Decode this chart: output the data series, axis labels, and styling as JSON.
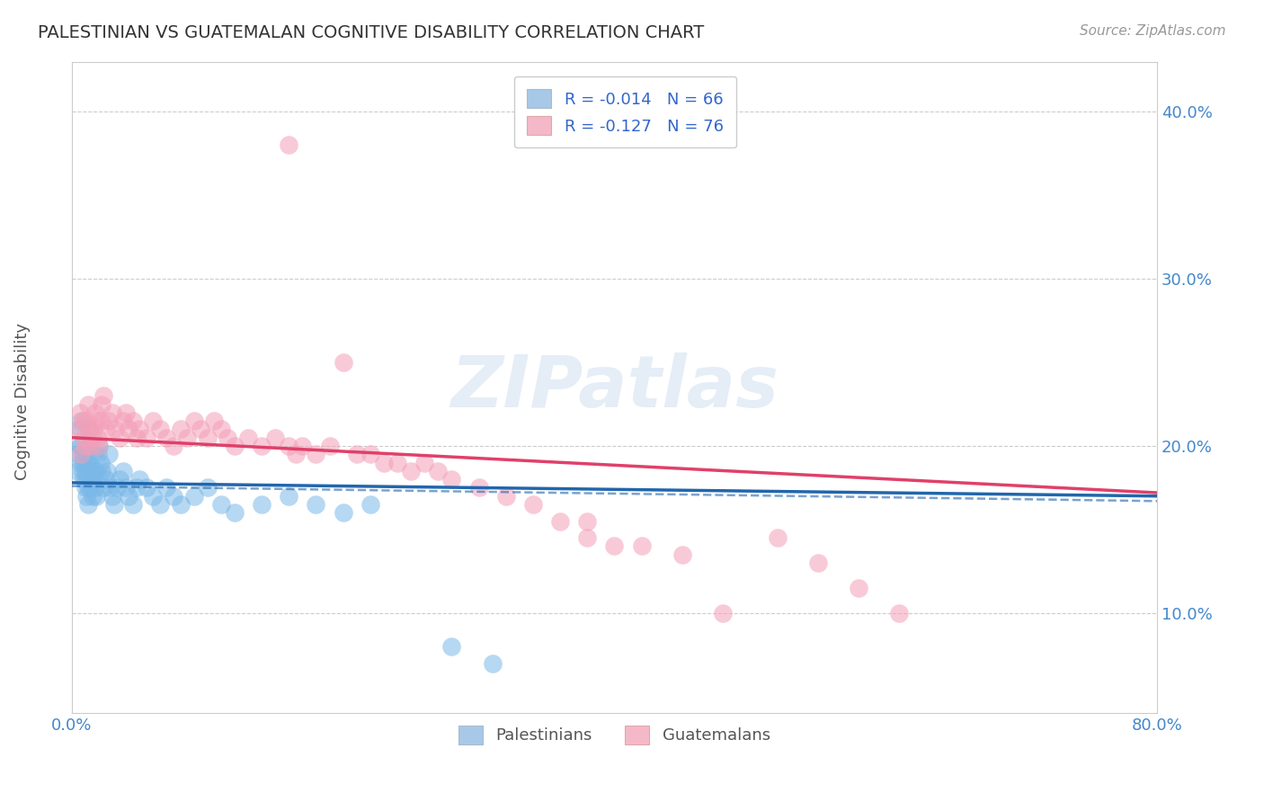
{
  "title": "PALESTINIAN VS GUATEMALAN COGNITIVE DISABILITY CORRELATION CHART",
  "source": "Source: ZipAtlas.com",
  "ylabel": "Cognitive Disability",
  "watermark": "ZIPatlas",
  "xlim": [
    0.0,
    0.8
  ],
  "ylim": [
    0.04,
    0.43
  ],
  "yticks": [
    0.1,
    0.2,
    0.3,
    0.4
  ],
  "xticks": [
    0.0,
    0.1,
    0.2,
    0.3,
    0.4,
    0.5,
    0.6,
    0.7,
    0.8
  ],
  "pal_color": "#7ab8e8",
  "pal_line_color": "#2166ac",
  "guat_color": "#f4a0b8",
  "guat_line_color": "#e0406a",
  "legend_patch_pal": "#a8c8e8",
  "legend_patch_guat": "#f4b8c8",
  "pal_line_start_y": 0.178,
  "pal_line_end_y": 0.17,
  "guat_line_start_y": 0.205,
  "guat_line_end_y": 0.172,
  "palestinians_x": [
    0.004,
    0.005,
    0.006,
    0.006,
    0.007,
    0.007,
    0.007,
    0.008,
    0.008,
    0.009,
    0.009,
    0.01,
    0.01,
    0.01,
    0.011,
    0.011,
    0.012,
    0.012,
    0.012,
    0.013,
    0.013,
    0.014,
    0.014,
    0.015,
    0.015,
    0.016,
    0.016,
    0.017,
    0.018,
    0.018,
    0.019,
    0.02,
    0.021,
    0.022,
    0.023,
    0.025,
    0.026,
    0.027,
    0.028,
    0.03,
    0.031,
    0.033,
    0.035,
    0.038,
    0.04,
    0.042,
    0.045,
    0.048,
    0.05,
    0.055,
    0.06,
    0.065,
    0.07,
    0.075,
    0.08,
    0.09,
    0.1,
    0.11,
    0.12,
    0.14,
    0.16,
    0.18,
    0.2,
    0.22,
    0.28,
    0.31
  ],
  "palestinians_y": [
    0.185,
    0.195,
    0.2,
    0.21,
    0.215,
    0.2,
    0.19,
    0.185,
    0.195,
    0.19,
    0.18,
    0.175,
    0.185,
    0.195,
    0.18,
    0.17,
    0.165,
    0.175,
    0.19,
    0.2,
    0.21,
    0.185,
    0.175,
    0.17,
    0.18,
    0.185,
    0.195,
    0.175,
    0.17,
    0.185,
    0.195,
    0.2,
    0.19,
    0.185,
    0.175,
    0.18,
    0.185,
    0.195,
    0.175,
    0.17,
    0.165,
    0.175,
    0.18,
    0.185,
    0.175,
    0.17,
    0.165,
    0.175,
    0.18,
    0.175,
    0.17,
    0.165,
    0.175,
    0.17,
    0.165,
    0.17,
    0.175,
    0.165,
    0.16,
    0.165,
    0.17,
    0.165,
    0.16,
    0.165,
    0.08,
    0.07
  ],
  "guatemalans_x": [
    0.005,
    0.006,
    0.007,
    0.008,
    0.009,
    0.01,
    0.011,
    0.012,
    0.013,
    0.014,
    0.015,
    0.016,
    0.017,
    0.018,
    0.019,
    0.02,
    0.021,
    0.022,
    0.023,
    0.025,
    0.027,
    0.03,
    0.032,
    0.035,
    0.038,
    0.04,
    0.042,
    0.045,
    0.048,
    0.05,
    0.055,
    0.06,
    0.065,
    0.07,
    0.075,
    0.08,
    0.085,
    0.09,
    0.095,
    0.1,
    0.105,
    0.11,
    0.115,
    0.12,
    0.13,
    0.14,
    0.15,
    0.16,
    0.165,
    0.17,
    0.18,
    0.19,
    0.2,
    0.21,
    0.22,
    0.23,
    0.24,
    0.25,
    0.26,
    0.27,
    0.28,
    0.3,
    0.32,
    0.34,
    0.36,
    0.38,
    0.4,
    0.42,
    0.45,
    0.48,
    0.52,
    0.55,
    0.58,
    0.61,
    0.38,
    0.16
  ],
  "guatemalans_y": [
    0.21,
    0.22,
    0.195,
    0.215,
    0.205,
    0.2,
    0.215,
    0.225,
    0.21,
    0.2,
    0.205,
    0.21,
    0.22,
    0.215,
    0.205,
    0.2,
    0.215,
    0.225,
    0.23,
    0.21,
    0.215,
    0.22,
    0.21,
    0.205,
    0.215,
    0.22,
    0.21,
    0.215,
    0.205,
    0.21,
    0.205,
    0.215,
    0.21,
    0.205,
    0.2,
    0.21,
    0.205,
    0.215,
    0.21,
    0.205,
    0.215,
    0.21,
    0.205,
    0.2,
    0.205,
    0.2,
    0.205,
    0.2,
    0.195,
    0.2,
    0.195,
    0.2,
    0.25,
    0.195,
    0.195,
    0.19,
    0.19,
    0.185,
    0.19,
    0.185,
    0.18,
    0.175,
    0.17,
    0.165,
    0.155,
    0.145,
    0.14,
    0.14,
    0.135,
    0.1,
    0.145,
    0.13,
    0.115,
    0.1,
    0.155,
    0.38
  ]
}
